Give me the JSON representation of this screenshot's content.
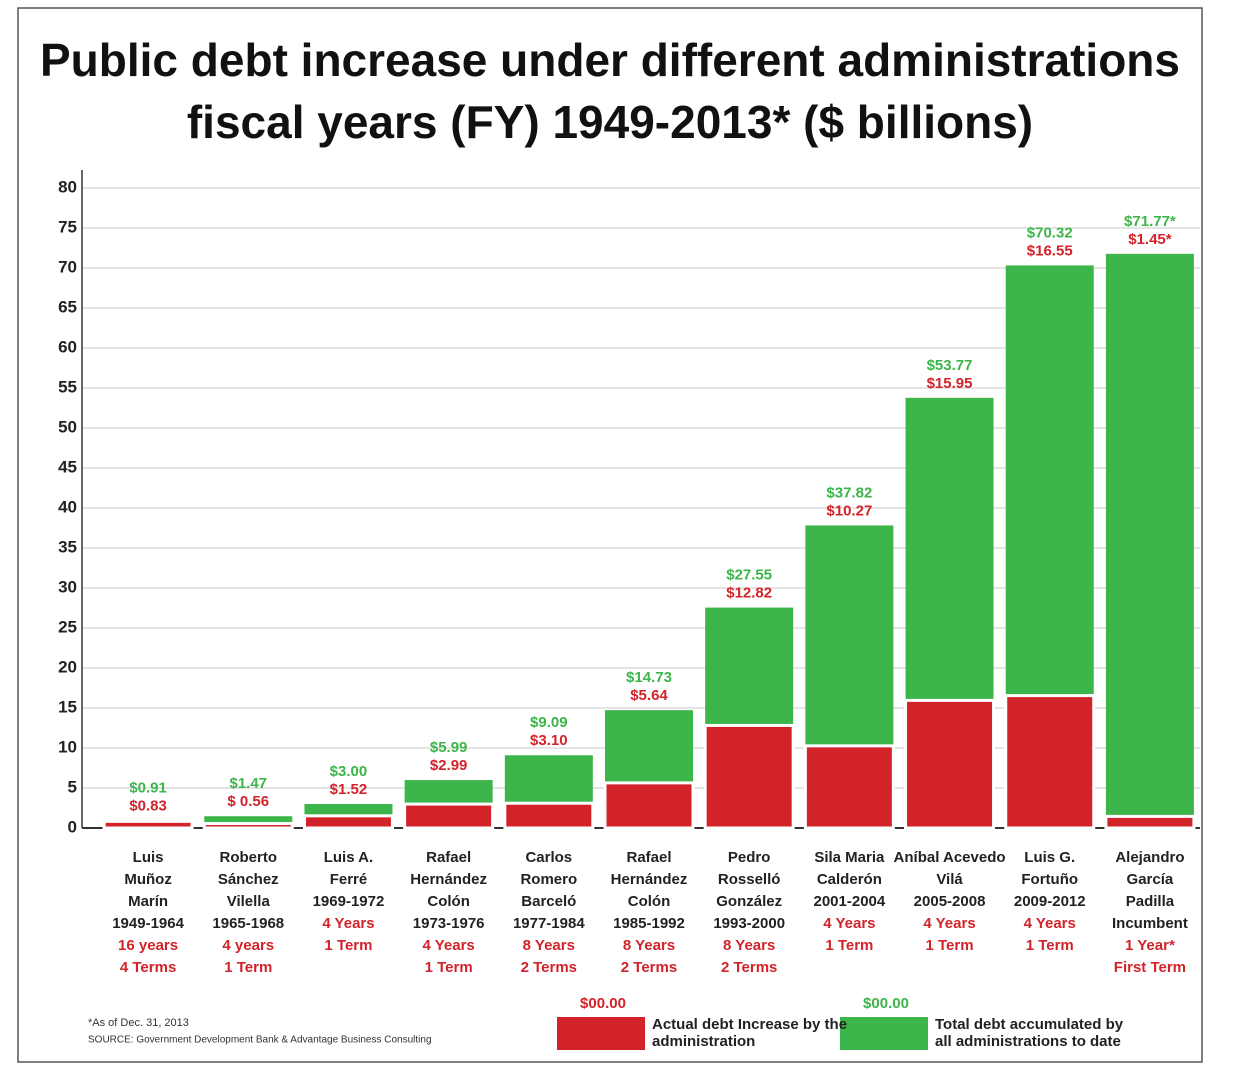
{
  "chart_data": {
    "type": "overlap-bar",
    "title": [
      "Public debt increase under different administrations",
      "fiscal years (FY) 1949-2013* ($ billions)"
    ],
    "categories": [
      [
        "Luis",
        "Muñoz",
        "Marín"
      ],
      [
        "Roberto",
        "Sánchez",
        "Vilella"
      ],
      [
        "Luis A.",
        "Ferré"
      ],
      [
        "Rafael",
        "Hernández",
        "Colón"
      ],
      [
        "Carlos",
        "Romero",
        "Barceló"
      ],
      [
        "Rafael",
        "Hernández",
        "Colón"
      ],
      [
        "Pedro",
        "Rosselló",
        "González"
      ],
      [
        "Sila Maria",
        "Calderón"
      ],
      [
        "Aníbal Acevedo",
        "Vilá"
      ],
      [
        "Luis G.",
        "Fortuño"
      ],
      [
        "Alejandro",
        "García",
        "Padilla"
      ]
    ],
    "periods": [
      "1949-1964",
      "1965-1968",
      "1969-1972",
      "1973-1976",
      "1977-1984",
      "1985-1992",
      "1993-2000",
      "2001-2004",
      "2005-2008",
      "2009-2012",
      "Incumbent"
    ],
    "tenure": [
      "16 years",
      "4 years",
      "4 Years",
      "4 Years",
      "8 Years",
      "8 Years",
      "8 Years",
      "4 Years",
      "4 Years",
      "4 Years",
      "1 Year*"
    ],
    "terms": [
      "4 Terms",
      "1 Term",
      "1 Term",
      "1 Term",
      "2 Terms",
      "2 Terms",
      "2 Terms",
      "1 Term",
      "1 Term",
      "1 Term",
      "First Term"
    ],
    "series": [
      {
        "name": "Total debt accumulated by all administrations to date",
        "color": "#3cb54a",
        "values": [
          0.91,
          1.47,
          3.0,
          5.99,
          9.09,
          14.73,
          27.55,
          37.82,
          53.77,
          70.32,
          71.77
        ],
        "value_labels": [
          "$0.91",
          "$1.47",
          "$3.00",
          "$5.99",
          "$9.09",
          "$14.73",
          "$27.55",
          "$37.82",
          "$53.77",
          "$70.32",
          "$71.77*"
        ]
      },
      {
        "name": "Actual debt Increase by the administration",
        "color": "#d2232a",
        "values": [
          0.83,
          0.56,
          1.52,
          2.99,
          3.1,
          5.64,
          12.82,
          10.27,
          15.95,
          16.55,
          1.45
        ],
        "value_labels": [
          "$0.83",
          "$ 0.56",
          "$1.52",
          "$2.99",
          "$3.10",
          "$5.64",
          "$12.82",
          "$10.27",
          "$15.95",
          "$16.55",
          "$1.45*"
        ]
      }
    ],
    "legend_sample": "$00.00",
    "ylim": [
      0,
      80
    ],
    "yticks": [
      0,
      5,
      10,
      15,
      20,
      25,
      30,
      35,
      40,
      45,
      50,
      55,
      60,
      65,
      70,
      75,
      80
    ],
    "grid": true,
    "footnote": "*As of Dec. 31, 2013",
    "source": "SOURCE: Government Development Bank & Advantage Business Consulting"
  }
}
